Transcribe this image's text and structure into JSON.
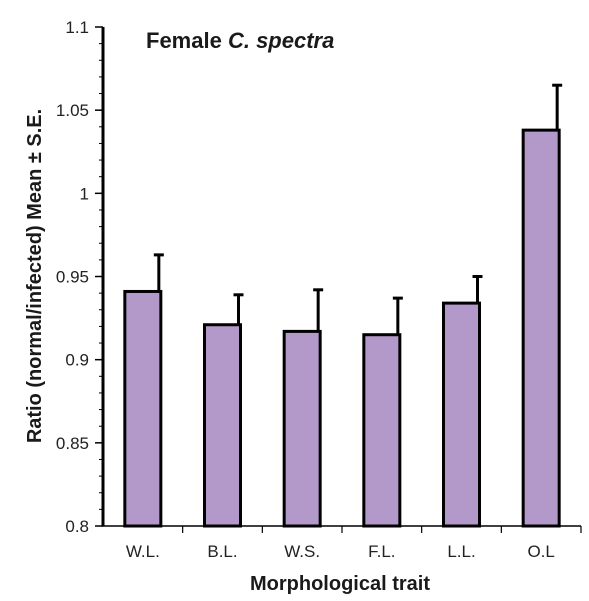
{
  "chart_data": {
    "type": "bar",
    "title": "Female",
    "title_species": "C. spectra",
    "xlabel": "Morphological trait",
    "ylabel": "Ratio (normal/infected) Mean ± S.E.",
    "categories": [
      "W.L.",
      "B.L.",
      "W.S.",
      "F.L.",
      "L.L.",
      "O.L"
    ],
    "values": [
      0.941,
      0.921,
      0.917,
      0.915,
      0.934,
      1.038
    ],
    "errors": [
      0.022,
      0.018,
      0.025,
      0.022,
      0.016,
      0.027
    ],
    "ylim": [
      0.8,
      1.1
    ],
    "yticks": [
      0.8,
      0.85,
      0.9,
      0.95,
      1,
      1.05,
      1.1
    ],
    "ytick_labels": [
      "0.8",
      "0.85",
      "0.9",
      "0.95",
      "1",
      "1.05",
      "1.1"
    ],
    "grid": false,
    "colors": {
      "bar_fill": "#b399c9",
      "bar_stroke": "#000000",
      "axis": "#000000"
    }
  }
}
